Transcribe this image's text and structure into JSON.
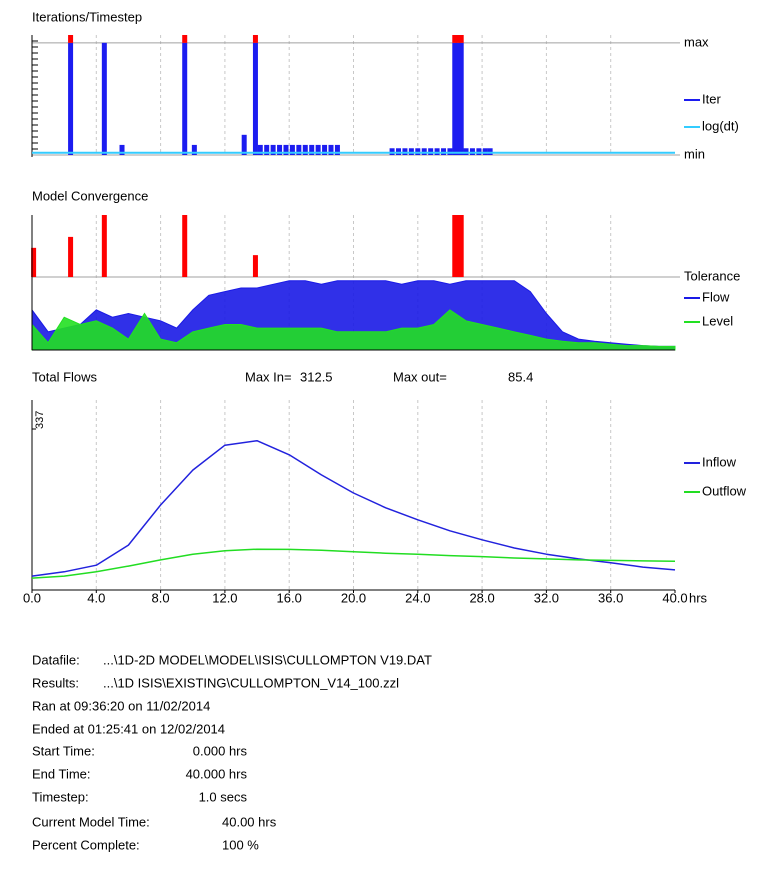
{
  "chart_data": [
    {
      "type": "bar",
      "title": "Iterations/Timestep",
      "xlim": [
        0,
        40
      ],
      "xticks": [
        4,
        8,
        12,
        16,
        20,
        24,
        28,
        32,
        36
      ],
      "ylim": [
        0,
        1.07
      ],
      "yticks": [
        {
          "value": 0,
          "label": "min"
        },
        {
          "value": 1,
          "label": "max"
        }
      ],
      "over_color": "#ff0000",
      "series": [
        {
          "name": "Iter",
          "color": "#1c1cf0",
          "mark": "bar",
          "x": [
            2.4,
            4.5,
            5.6,
            9.5,
            10.1,
            13.2,
            13.9,
            14.2,
            14.6,
            15,
            15.4,
            15.8,
            16.2,
            16.6,
            17,
            17.4,
            17.8,
            18.2,
            18.6,
            19,
            22.4,
            22.8,
            23.2,
            23.6,
            24,
            24.4,
            24.8,
            25.2,
            25.6,
            26,
            26.3,
            26.5,
            26.7,
            27,
            27.4,
            27.8,
            28.2,
            28.5
          ],
          "values": [
            1.07,
            1,
            0.09,
            1.07,
            0.09,
            0.18,
            1.07,
            0.09,
            0.09,
            0.09,
            0.09,
            0.09,
            0.09,
            0.09,
            0.09,
            0.09,
            0.09,
            0.09,
            0.09,
            0.09,
            0.06,
            0.06,
            0.06,
            0.06,
            0.06,
            0.06,
            0.06,
            0.06,
            0.06,
            0.06,
            1.07,
            1.07,
            1.07,
            0.06,
            0.06,
            0.06,
            0.06,
            0.06
          ]
        },
        {
          "name": "log(dt)",
          "color": "#33ccff",
          "mark": "line",
          "x": [
            0,
            40
          ],
          "values": [
            0.02,
            0.02
          ]
        }
      ]
    },
    {
      "type": "area",
      "title": "Model Convergence",
      "xlim": [
        0,
        40
      ],
      "xticks": [
        4,
        8,
        12,
        16,
        20,
        24,
        28,
        32,
        36
      ],
      "ylim": [
        0,
        1.85
      ],
      "yticks": [
        {
          "value": 1,
          "label": "Tolerance"
        }
      ],
      "exceedances": {
        "color": "#ff0000",
        "x": [
          0.1,
          2.4,
          4.5,
          9.5,
          13.9,
          26.3,
          26.5,
          26.7
        ],
        "values": [
          1.4,
          1.55,
          1.85,
          1.85,
          1.3,
          1.85,
          1.85,
          1.85
        ]
      },
      "x": [
        0,
        1,
        2,
        3,
        4,
        5,
        6,
        7,
        8,
        9,
        10,
        11,
        12,
        13,
        14,
        15,
        16,
        17,
        18,
        19,
        20,
        21,
        22,
        23,
        24,
        25,
        26,
        27,
        28,
        29,
        30,
        31,
        32,
        33,
        34,
        35,
        36,
        37,
        38,
        39,
        40
      ],
      "series": [
        {
          "name": "Flow",
          "color": "#1a1ae6",
          "values": [
            0.55,
            0.25,
            0.3,
            0.35,
            0.55,
            0.45,
            0.5,
            0.45,
            0.4,
            0.3,
            0.55,
            0.75,
            0.8,
            0.85,
            0.85,
            0.9,
            0.95,
            0.95,
            0.9,
            0.95,
            0.95,
            0.95,
            0.95,
            0.9,
            0.95,
            0.95,
            0.9,
            0.95,
            0.95,
            0.95,
            0.95,
            0.8,
            0.5,
            0.25,
            0.15,
            0.12,
            0.1,
            0.08,
            0.06,
            0.05,
            0.05
          ]
        },
        {
          "name": "Level",
          "color": "#22e022",
          "values": [
            0.35,
            0.1,
            0.45,
            0.35,
            0.4,
            0.3,
            0.15,
            0.5,
            0.15,
            0.1,
            0.25,
            0.3,
            0.35,
            0.35,
            0.3,
            0.3,
            0.3,
            0.3,
            0.3,
            0.25,
            0.25,
            0.25,
            0.25,
            0.3,
            0.3,
            0.35,
            0.55,
            0.4,
            0.35,
            0.3,
            0.25,
            0.2,
            0.15,
            0.12,
            0.1,
            0.1,
            0.08,
            0.06,
            0.06,
            0.05,
            0.05
          ]
        }
      ]
    },
    {
      "type": "line",
      "title": "Total Flows",
      "max_in_label": "Max In=",
      "max_in": 312.5,
      "max_out_label": "Max out=",
      "max_out": 85.4,
      "x_unit": "hrs",
      "xlim": [
        0,
        40
      ],
      "xticks": [
        {
          "value": 0,
          "label": "0.0"
        },
        {
          "value": 4,
          "label": "4.0"
        },
        {
          "value": 8,
          "label": "8.0"
        },
        {
          "value": 12,
          "label": "12.0"
        },
        {
          "value": 16,
          "label": "16.0"
        },
        {
          "value": 20,
          "label": "20.0"
        },
        {
          "value": 24,
          "label": "24.0"
        },
        {
          "value": 28,
          "label": "28.0"
        },
        {
          "value": 32,
          "label": "32.0"
        },
        {
          "value": 36,
          "label": "36.0"
        },
        {
          "value": 40,
          "label": "40.0"
        }
      ],
      "ylim": [
        0,
        337
      ],
      "yticks": [
        337
      ],
      "x": [
        0,
        2,
        4,
        6,
        8,
        10,
        12,
        14,
        16,
        18,
        20,
        22,
        24,
        26,
        28,
        30,
        32,
        34,
        36,
        38,
        40
      ],
      "series": [
        {
          "name": "Inflow",
          "color": "#2222dd",
          "values": [
            29,
            38,
            52,
            94,
            178,
            251,
            303,
            312.5,
            283,
            241,
            203,
            172,
            147,
            124,
            105,
            88,
            75,
            65,
            57,
            48,
            42
          ]
        },
        {
          "name": "Outflow",
          "color": "#22dd22",
          "values": [
            25,
            29,
            38,
            50,
            63,
            75,
            82,
            85.4,
            85,
            83,
            80,
            77,
            75,
            72,
            70,
            67,
            65,
            63,
            62,
            61,
            60
          ]
        }
      ]
    }
  ],
  "info": {
    "files": [
      {
        "label": "Datafile:",
        "value": "...\\1D-2D MODEL\\MODEL\\ISIS\\CULLOMPTON V19.DAT"
      },
      {
        "label": "Results:",
        "value": "...\\1D ISIS\\EXISTING\\CULLOMPTON_V14_100.zzl"
      }
    ],
    "ran": "Ran at 09:36:20 on 11/02/2014",
    "ended": "Ended at 01:25:41 on 12/02/2014",
    "times": [
      {
        "label": "Start Time:",
        "value": "0.000 hrs"
      },
      {
        "label": "End Time:",
        "value": "40.000 hrs"
      },
      {
        "label": "Timestep:",
        "value": "1.0 secs"
      }
    ],
    "progress": [
      {
        "label": "Current Model Time:",
        "value": "40.00 hrs"
      },
      {
        "label": "Percent Complete:",
        "value": "100 %"
      }
    ]
  }
}
